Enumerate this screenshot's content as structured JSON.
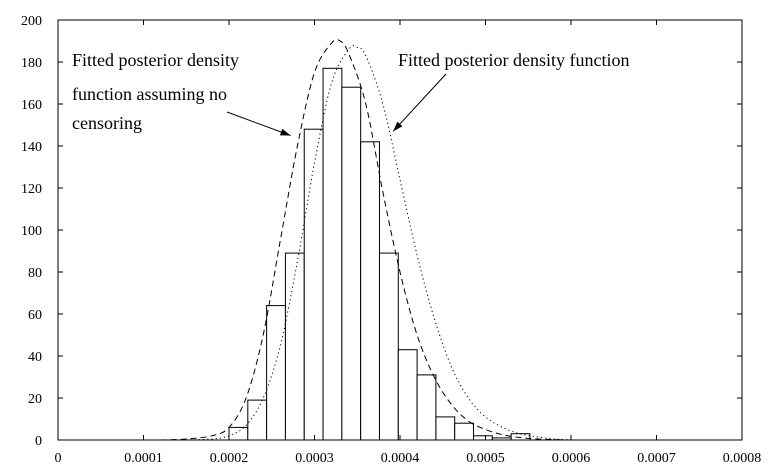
{
  "chart_data": {
    "type": "bar",
    "title": "",
    "xlabel": "",
    "ylabel": "",
    "xlim": [
      0,
      0.0008
    ],
    "ylim": [
      0,
      200
    ],
    "grid": false,
    "xticks": [
      0,
      0.0001,
      0.0002,
      0.0003,
      0.0004,
      0.0005,
      0.0006,
      0.0007,
      0.0008
    ],
    "xtick_labels": [
      "0",
      "0.0001",
      "0.0002",
      "0.0003",
      "0.0004",
      "0.0005",
      "0.0006",
      "0.0007",
      "0.0008"
    ],
    "yticks": [
      0,
      20,
      40,
      60,
      80,
      100,
      120,
      140,
      160,
      180,
      200
    ],
    "ytick_labels": [
      "0",
      "20",
      "40",
      "60",
      "80",
      "100",
      "120",
      "140",
      "160",
      "180",
      "200"
    ],
    "histogram": {
      "bin_edges": [
        0.0002,
        0.000222,
        0.000244,
        0.000266,
        0.000288,
        0.00031,
        0.000332,
        0.000354,
        0.000376,
        0.000398,
        0.00042,
        0.000442,
        0.000464,
        0.000486,
        0.000508,
        0.00053,
        0.000552,
        0.000574,
        0.000596
      ],
      "counts": [
        6,
        19,
        64,
        89,
        148,
        177,
        168,
        142,
        89,
        43,
        31,
        11,
        8,
        2,
        1,
        3,
        0,
        0
      ]
    },
    "series": [
      {
        "name": "Fitted posterior density function",
        "style": "dotted",
        "x": [
          0.00015,
          0.00018,
          0.0002,
          0.00022,
          0.00024,
          0.00026,
          0.00028,
          0.0003,
          0.00032,
          0.00034,
          0.00035,
          0.00036,
          0.00038,
          0.0004,
          0.00042,
          0.00044,
          0.00046,
          0.00048,
          0.0005,
          0.00052,
          0.00054,
          0.00056,
          0.00058,
          0.0006
        ],
        "y": [
          0,
          0.5,
          2,
          7,
          20,
          45,
          85,
          132,
          170,
          186,
          187,
          183,
          160,
          124,
          88,
          58,
          35,
          20,
          11,
          6,
          3,
          1.5,
          0.5,
          0
        ]
      },
      {
        "name": "Fitted posterior density function assuming no censoring",
        "style": "dashed",
        "x": [
          0.00012,
          0.00015,
          0.00018,
          0.0002,
          0.00022,
          0.00024,
          0.00026,
          0.00028,
          0.0003,
          0.00032,
          0.00033,
          0.00034,
          0.00036,
          0.00038,
          0.0004,
          0.00042,
          0.00044,
          0.00046,
          0.00048,
          0.0005,
          0.00052,
          0.00054,
          0.00056,
          0.00058,
          0.0006
        ],
        "y": [
          0,
          0.5,
          2,
          6,
          20,
          50,
          95,
          140,
          175,
          189,
          190,
          184,
          160,
          118,
          80,
          50,
          30,
          17,
          9,
          5,
          2.5,
          1.2,
          0.5,
          0.2,
          0
        ]
      }
    ],
    "annotations": [
      {
        "id": "no-censoring",
        "lines": [
          "Fitted posterior density",
          "function assuming no",
          "censoring"
        ],
        "target": [
          0.000272,
          145
        ],
        "target_series": "Fitted posterior density function assuming no censoring"
      },
      {
        "id": "posterior",
        "lines": [
          "Fitted posterior density function"
        ],
        "target": [
          0.000392,
          147
        ],
        "target_series": "Fitted posterior density function"
      }
    ]
  }
}
